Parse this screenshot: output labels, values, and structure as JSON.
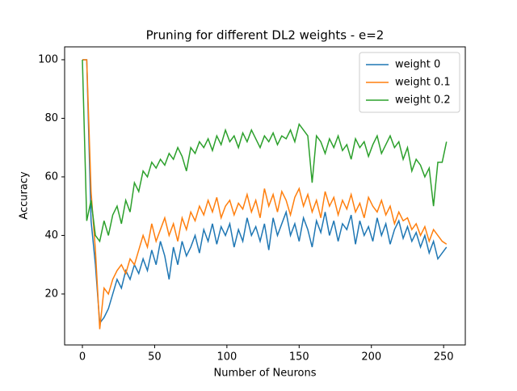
{
  "chart_data": {
    "type": "line",
    "title": "Pruning for different DL2 weights - e=2",
    "xlabel": "Number of Neurons",
    "ylabel": "Accuracy",
    "x": [
      0,
      3,
      6,
      9,
      12,
      15,
      18,
      21,
      24,
      27,
      30,
      33,
      36,
      39,
      42,
      45,
      48,
      51,
      54,
      57,
      60,
      63,
      66,
      69,
      72,
      75,
      78,
      81,
      84,
      87,
      90,
      93,
      96,
      99,
      102,
      105,
      108,
      111,
      114,
      117,
      120,
      123,
      126,
      129,
      132,
      135,
      138,
      141,
      144,
      147,
      150,
      153,
      156,
      159,
      162,
      165,
      168,
      171,
      174,
      177,
      180,
      183,
      186,
      189,
      192,
      195,
      198,
      201,
      204,
      207,
      210,
      213,
      216,
      219,
      222,
      225,
      228,
      231,
      234,
      237,
      240,
      243,
      246,
      249,
      252
    ],
    "series": [
      {
        "name": "weight 0",
        "color": "#1f77b4",
        "values": [
          100,
          100,
          45,
          30,
          10,
          12,
          15,
          20,
          25,
          22,
          28,
          25,
          30,
          27,
          32,
          28,
          35,
          30,
          38,
          33,
          25,
          36,
          30,
          38,
          33,
          36,
          40,
          34,
          42,
          38,
          44,
          37,
          43,
          40,
          44,
          36,
          42,
          38,
          46,
          40,
          43,
          38,
          44,
          35,
          46,
          40,
          44,
          48,
          40,
          44,
          38,
          46,
          42,
          36,
          45,
          41,
          48,
          40,
          45,
          38,
          44,
          42,
          47,
          37,
          45,
          40,
          43,
          38,
          46,
          40,
          44,
          37,
          42,
          45,
          39,
          43,
          38,
          41,
          36,
          40,
          34,
          38,
          32,
          34,
          36
        ]
      },
      {
        "name": "weight 0.1",
        "color": "#ff7f0e",
        "values": [
          100,
          100,
          55,
          35,
          8,
          22,
          20,
          25,
          28,
          30,
          27,
          32,
          30,
          35,
          40,
          36,
          44,
          38,
          42,
          46,
          40,
          44,
          38,
          46,
          42,
          48,
          45,
          50,
          47,
          52,
          48,
          53,
          46,
          50,
          52,
          47,
          51,
          49,
          54,
          48,
          52,
          46,
          56,
          50,
          54,
          48,
          55,
          52,
          47,
          53,
          56,
          50,
          54,
          48,
          52,
          46,
          55,
          50,
          53,
          47,
          52,
          49,
          54,
          48,
          51,
          46,
          53,
          50,
          48,
          52,
          47,
          50,
          44,
          48,
          45,
          46,
          42,
          44,
          40,
          43,
          38,
          42,
          40,
          38,
          37
        ]
      },
      {
        "name": "weight 0.2",
        "color": "#2ca02c",
        "values": [
          100,
          45,
          52,
          40,
          38,
          45,
          40,
          47,
          50,
          44,
          52,
          48,
          58,
          55,
          62,
          60,
          65,
          63,
          66,
          64,
          68,
          66,
          70,
          67,
          62,
          70,
          68,
          72,
          70,
          73,
          69,
          74,
          71,
          76,
          72,
          74,
          70,
          75,
          72,
          76,
          73,
          70,
          74,
          72,
          75,
          71,
          74,
          73,
          76,
          72,
          78,
          76,
          74,
          58,
          74,
          72,
          68,
          73,
          70,
          74,
          69,
          71,
          66,
          73,
          70,
          72,
          67,
          71,
          74,
          68,
          71,
          74,
          70,
          72,
          66,
          70,
          62,
          66,
          64,
          60,
          63,
          50,
          65,
          65,
          72
        ]
      }
    ],
    "xlim": [
      -12.3,
      265
    ],
    "ylim": [
      2.6,
      104.4
    ],
    "xticks": [
      0,
      50,
      100,
      150,
      200,
      250
    ],
    "yticks": [
      20,
      40,
      60,
      80,
      100
    ],
    "legend": "upper right"
  }
}
